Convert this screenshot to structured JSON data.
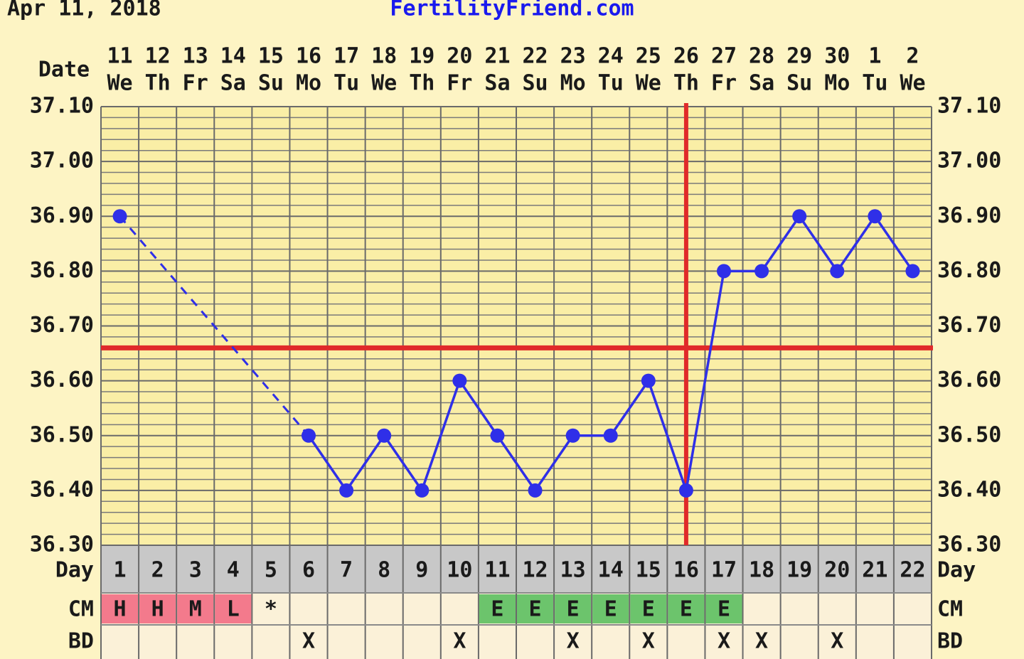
{
  "chart_data": {
    "type": "line",
    "header_date": "Apr 11, 2018",
    "site": "FertilityFriend.com",
    "date_label": "Date",
    "day_label": "Day",
    "cm_label": "CM",
    "bd_label": "BD",
    "categories": [
      "11",
      "12",
      "13",
      "14",
      "15",
      "16",
      "17",
      "18",
      "19",
      "20",
      "21",
      "22",
      "23",
      "24",
      "25",
      "26",
      "27",
      "28",
      "29",
      "30",
      "1",
      "2"
    ],
    "weekdays": [
      "We",
      "Th",
      "Fr",
      "Sa",
      "Su",
      "Mo",
      "Tu",
      "We",
      "Th",
      "Fr",
      "Sa",
      "Su",
      "Mo",
      "Tu",
      "We",
      "Th",
      "Fr",
      "Sa",
      "Su",
      "Mo",
      "Tu",
      "We"
    ],
    "days": [
      1,
      2,
      3,
      4,
      5,
      6,
      7,
      8,
      9,
      10,
      11,
      12,
      13,
      14,
      15,
      16,
      17,
      18,
      19,
      20,
      21,
      22
    ],
    "values": [
      36.9,
      null,
      null,
      null,
      null,
      36.5,
      36.4,
      36.5,
      36.4,
      36.6,
      36.5,
      36.4,
      36.5,
      36.5,
      36.6,
      36.4,
      36.8,
      36.8,
      36.9,
      36.8,
      36.9,
      36.8
    ],
    "color": "#2f2fe8",
    "coverline": 36.66,
    "ovulation_day": 16,
    "marker_line_color": "#e02a2a",
    "ylim": [
      36.3,
      37.1
    ],
    "yticks": [
      {
        "value": 36.3,
        "label": "36.30"
      },
      {
        "value": 36.4,
        "label": "36.40"
      },
      {
        "value": 36.5,
        "label": "36.50"
      },
      {
        "value": 36.6,
        "label": "36.60"
      },
      {
        "value": 36.7,
        "label": "36.70"
      },
      {
        "value": 36.8,
        "label": "36.80"
      },
      {
        "value": 36.9,
        "label": "36.90"
      },
      {
        "value": 37.0,
        "label": "37.00"
      },
      {
        "value": 37.1,
        "label": "37.10"
      }
    ],
    "grid": true,
    "cm": [
      "H",
      "H",
      "M",
      "L",
      "*",
      null,
      null,
      null,
      null,
      null,
      "E",
      "E",
      "E",
      "E",
      "E",
      "E",
      "E",
      null,
      null,
      null,
      null,
      null
    ],
    "cm_colors": {
      "H": "#f37a8c",
      "M": "#f37a8c",
      "L": "#f37a8c",
      "E": "#6cc46c"
    },
    "bd": [
      null,
      null,
      null,
      null,
      null,
      "X",
      null,
      null,
      null,
      "X",
      null,
      null,
      "X",
      null,
      "X",
      null,
      "X",
      "X",
      null,
      "X",
      null,
      null
    ]
  }
}
